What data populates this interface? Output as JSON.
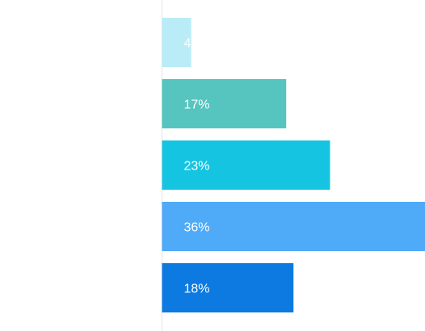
{
  "chart_data": {
    "type": "bar",
    "orientation": "horizontal",
    "xlim": [
      0,
      36
    ],
    "grid": false,
    "legend": "none",
    "series": [
      {
        "values": [
          4,
          17,
          23,
          36,
          18
        ],
        "labels": [
          "4%",
          "17%",
          "23%",
          "36%",
          "18%"
        ]
      }
    ],
    "colors": [
      "#b9ecf6",
      "#56c4bf",
      "#15c4e1",
      "#4faaf7",
      "#0c7ae0"
    ]
  }
}
